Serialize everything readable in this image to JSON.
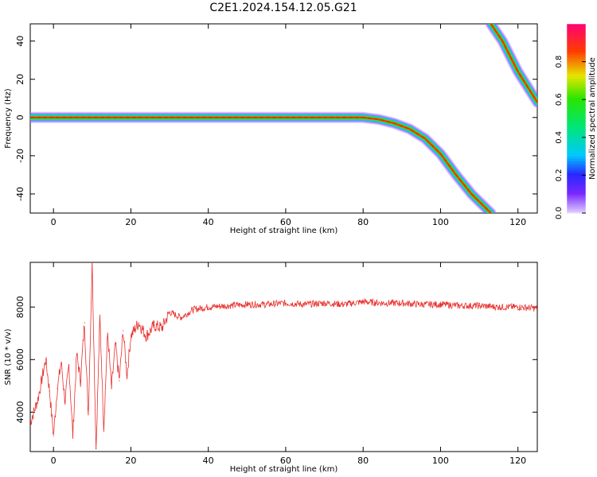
{
  "title": "C2E1.2024.154.12.05.G21",
  "chart_data": [
    {
      "type": "heatmap",
      "xlabel": "Height of straight line (km)",
      "ylabel": "Frequency (Hz)",
      "xlim": [
        -6,
        125
      ],
      "ylim": [
        -50,
        49
      ],
      "xticks": [
        0,
        20,
        40,
        60,
        80,
        100,
        120
      ],
      "yticks": [
        -40,
        -20,
        0,
        20,
        40
      ],
      "colorbar": {
        "label": "Normalized spectral amplitude",
        "ticks": [
          0.0,
          0.2,
          0.4,
          0.6,
          0.8
        ],
        "range": [
          0,
          1
        ]
      },
      "ridges": [
        {
          "height_km": [
            -6,
            80,
            84,
            88,
            92,
            96,
            100,
            104,
            108,
            113
          ],
          "frequency_hz": [
            0,
            0,
            -1,
            -3,
            -6,
            -11,
            -19,
            -30,
            -40,
            -50
          ]
        },
        {
          "height_km": [
            113,
            116,
            120,
            125
          ],
          "frequency_hz": [
            49,
            40,
            24,
            8
          ]
        }
      ]
    },
    {
      "type": "line",
      "xlabel": "Height of straight line (km)",
      "ylabel": "SNR (10 * v/v)",
      "xlim": [
        -6,
        125
      ],
      "ylim": [
        2500,
        9700
      ],
      "xticks": [
        0,
        20,
        40,
        60,
        80,
        100,
        120
      ],
      "yticks": [
        4000,
        6000,
        8000
      ],
      "color": "#e8312e",
      "x": [
        -6,
        -4,
        -2,
        -1,
        0,
        1,
        2,
        3,
        4,
        5,
        6,
        7,
        8,
        9,
        10,
        11,
        12,
        13,
        14,
        15,
        16,
        17,
        18,
        19,
        20,
        22,
        24,
        26,
        28,
        30,
        33,
        36,
        40,
        45,
        50,
        55,
        60,
        65,
        70,
        75,
        80,
        85,
        90,
        95,
        100,
        105,
        110,
        115,
        120,
        125
      ],
      "y": [
        3600,
        4500,
        6000,
        4800,
        3100,
        4900,
        5900,
        4400,
        5800,
        3100,
        6200,
        5200,
        7400,
        3900,
        9700,
        2600,
        7600,
        3400,
        7000,
        4900,
        6600,
        5200,
        7100,
        5400,
        6900,
        7400,
        6900,
        7300,
        7200,
        7800,
        7600,
        7900,
        8000,
        8050,
        8100,
        8100,
        8150,
        8100,
        8150,
        8100,
        8200,
        8150,
        8150,
        8100,
        8100,
        8050,
        8050,
        8000,
        8000,
        7950
      ]
    }
  ]
}
